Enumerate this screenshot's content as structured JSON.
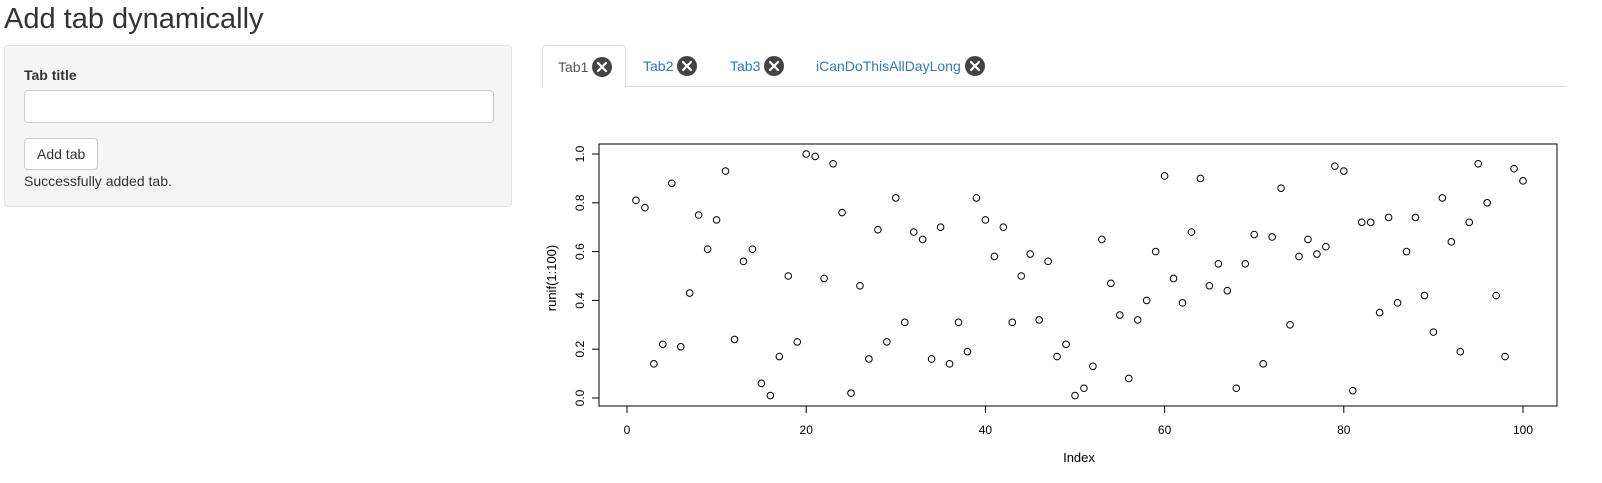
{
  "page": {
    "title": "Add tab dynamically"
  },
  "sidebar": {
    "field_label": "Tab title",
    "input_value": "",
    "input_placeholder": "",
    "add_button_label": "Add tab",
    "status_message": "Successfully added tab."
  },
  "tabs": [
    {
      "label": "Tab1",
      "active": true,
      "close_icon": "circle-x-icon"
    },
    {
      "label": "Tab2",
      "active": false,
      "close_icon": "circle-x-icon"
    },
    {
      "label": "Tab3",
      "active": false,
      "close_icon": "circle-x-icon"
    },
    {
      "label": "iCanDoThisAllDayLong",
      "active": false,
      "close_icon": "circle-x-icon"
    }
  ],
  "colors": {
    "link": "#337ab7",
    "active_tab_text": "#555555",
    "close_icon_bg": "#444444"
  },
  "chart_data": {
    "type": "scatter",
    "title": "",
    "xlabel": "Index",
    "ylabel": "runif(1:100)",
    "xlim": [
      0,
      100
    ],
    "ylim": [
      0,
      1
    ],
    "x_ticks": [
      "0",
      "20",
      "40",
      "60",
      "80",
      "100"
    ],
    "y_ticks": [
      "0.0",
      "0.2",
      "0.4",
      "0.6",
      "0.8",
      "1.0"
    ],
    "grid": false,
    "marker": "open-circle",
    "x": [
      1,
      2,
      3,
      4,
      5,
      6,
      7,
      8,
      9,
      10,
      11,
      12,
      13,
      14,
      15,
      16,
      17,
      18,
      19,
      20,
      21,
      22,
      23,
      24,
      25,
      26,
      27,
      28,
      29,
      30,
      31,
      32,
      33,
      34,
      35,
      36,
      37,
      38,
      39,
      40,
      41,
      42,
      43,
      44,
      45,
      46,
      47,
      48,
      49,
      50,
      51,
      52,
      53,
      54,
      55,
      56,
      57,
      58,
      59,
      60,
      61,
      62,
      63,
      64,
      65,
      66,
      67,
      68,
      69,
      70,
      71,
      72,
      73,
      74,
      75,
      76,
      77,
      78,
      79,
      80,
      81,
      82,
      83,
      84,
      85,
      86,
      87,
      88,
      89,
      90,
      91,
      92,
      93,
      94,
      95,
      96,
      97,
      98,
      99,
      100
    ],
    "y": [
      0.81,
      0.78,
      0.14,
      0.22,
      0.88,
      0.21,
      0.43,
      0.75,
      0.61,
      0.73,
      0.93,
      0.24,
      0.56,
      0.61,
      0.06,
      0.01,
      0.17,
      0.5,
      0.23,
      1.0,
      0.99,
      0.49,
      0.96,
      0.76,
      0.02,
      0.46,
      0.16,
      0.69,
      0.23,
      0.82,
      0.31,
      0.68,
      0.65,
      0.16,
      0.7,
      0.14,
      0.31,
      0.19,
      0.82,
      0.73,
      0.58,
      0.7,
      0.31,
      0.5,
      0.59,
      0.32,
      0.56,
      0.17,
      0.22,
      0.01,
      0.04,
      0.13,
      0.65,
      0.47,
      0.34,
      0.08,
      0.32,
      0.4,
      0.6,
      0.91,
      0.49,
      0.39,
      0.68,
      0.9,
      0.46,
      0.55,
      0.44,
      0.04,
      0.55,
      0.67,
      0.14,
      0.66,
      0.86,
      0.3,
      0.58,
      0.65,
      0.59,
      0.62,
      0.95,
      0.93,
      0.03,
      0.72,
      0.72,
      0.35,
      0.74,
      0.39,
      0.6,
      0.74,
      0.42,
      0.27,
      0.82,
      0.64,
      0.19,
      0.72,
      0.96,
      0.8,
      0.42,
      0.17,
      0.94,
      0.89
    ]
  }
}
